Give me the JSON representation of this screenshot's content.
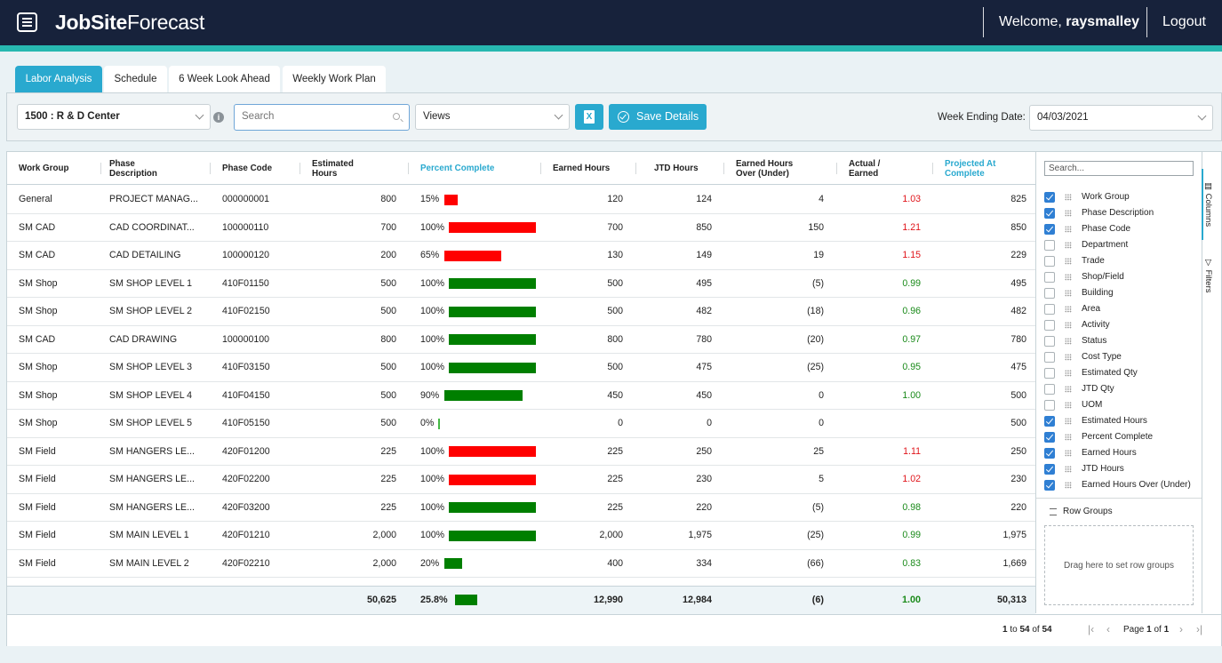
{
  "header": {
    "logo_bold": "JobSite",
    "logo_light": "Forecast",
    "welcome_prefix": "Welcome, ",
    "username": "raysmalley",
    "logout": "Logout"
  },
  "tabs": [
    {
      "label": "Labor Analysis",
      "active": true
    },
    {
      "label": "Schedule",
      "active": false
    },
    {
      "label": "6 Week Look Ahead",
      "active": false
    },
    {
      "label": "Weekly Work Plan",
      "active": false
    }
  ],
  "toolbar": {
    "project": "1500 : R & D Center",
    "search_placeholder": "Search",
    "views": "Views",
    "excel_icon": "X",
    "save_label": "Save Details",
    "week_ending_label": "Week Ending Date:",
    "week_ending_value": "04/03/2021"
  },
  "columns": {
    "work_group": "Work Group",
    "phase_description": [
      "Phase",
      "Description"
    ],
    "phase_code": "Phase Code",
    "estimated_hours": [
      "Estimated",
      "Hours"
    ],
    "percent_complete": "Percent Complete",
    "earned_hours": "Earned Hours",
    "jtd_hours": "JTD Hours",
    "earned_over_under": [
      "Earned Hours",
      "Over (Under)"
    ],
    "actual_earned": [
      "Actual /",
      "Earned"
    ],
    "projected": [
      "Projected At",
      "Complete"
    ]
  },
  "rows": [
    {
      "wg": "General",
      "desc": "PROJECT MANAG...",
      "code": "000000001",
      "est": "800",
      "pct_label": "15%",
      "pct": 15,
      "pct_status": "red",
      "earned": "120",
      "jtd": "124",
      "over": "4",
      "ratio": "1.03",
      "ratio_status": "red",
      "proj": "825"
    },
    {
      "wg": "SM CAD",
      "desc": "CAD COORDINAT...",
      "code": "100000110",
      "est": "700",
      "pct_label": "100%",
      "pct": 100,
      "pct_status": "red",
      "earned": "700",
      "jtd": "850",
      "over": "150",
      "ratio": "1.21",
      "ratio_status": "red",
      "proj": "850"
    },
    {
      "wg": "SM CAD",
      "desc": "CAD DETAILING",
      "code": "100000120",
      "est": "200",
      "pct_label": "65%",
      "pct": 65,
      "pct_status": "red",
      "earned": "130",
      "jtd": "149",
      "over": "19",
      "ratio": "1.15",
      "ratio_status": "red",
      "proj": "229"
    },
    {
      "wg": "SM Shop",
      "desc": "SM SHOP LEVEL 1",
      "code": "410F01150",
      "est": "500",
      "pct_label": "100%",
      "pct": 100,
      "pct_status": "green",
      "earned": "500",
      "jtd": "495",
      "over": "(5)",
      "ratio": "0.99",
      "ratio_status": "green",
      "proj": "495"
    },
    {
      "wg": "SM Shop",
      "desc": "SM SHOP LEVEL 2",
      "code": "410F02150",
      "est": "500",
      "pct_label": "100%",
      "pct": 100,
      "pct_status": "green",
      "earned": "500",
      "jtd": "482",
      "over": "(18)",
      "ratio": "0.96",
      "ratio_status": "green",
      "proj": "482"
    },
    {
      "wg": "SM CAD",
      "desc": "CAD DRAWING",
      "code": "100000100",
      "est": "800",
      "pct_label": "100%",
      "pct": 100,
      "pct_status": "green",
      "earned": "800",
      "jtd": "780",
      "over": "(20)",
      "ratio": "0.97",
      "ratio_status": "green",
      "proj": "780"
    },
    {
      "wg": "SM Shop",
      "desc": "SM SHOP LEVEL 3",
      "code": "410F03150",
      "est": "500",
      "pct_label": "100%",
      "pct": 100,
      "pct_status": "green",
      "earned": "500",
      "jtd": "475",
      "over": "(25)",
      "ratio": "0.95",
      "ratio_status": "green",
      "proj": "475"
    },
    {
      "wg": "SM Shop",
      "desc": "SM SHOP LEVEL 4",
      "code": "410F04150",
      "est": "500",
      "pct_label": "90%",
      "pct": 90,
      "pct_status": "green",
      "earned": "450",
      "jtd": "450",
      "over": "0",
      "ratio": "1.00",
      "ratio_status": "green",
      "proj": "500"
    },
    {
      "wg": "SM Shop",
      "desc": "SM SHOP LEVEL 5",
      "code": "410F05150",
      "est": "500",
      "pct_label": "0%",
      "pct": 0,
      "pct_status": "green",
      "earned": "0",
      "jtd": "0",
      "over": "0",
      "ratio": "",
      "ratio_status": "green",
      "proj": "500"
    },
    {
      "wg": "SM Field",
      "desc": "SM HANGERS LE...",
      "code": "420F01200",
      "est": "225",
      "pct_label": "100%",
      "pct": 100,
      "pct_status": "red",
      "earned": "225",
      "jtd": "250",
      "over": "25",
      "ratio": "1.11",
      "ratio_status": "red",
      "proj": "250"
    },
    {
      "wg": "SM Field",
      "desc": "SM HANGERS LE...",
      "code": "420F02200",
      "est": "225",
      "pct_label": "100%",
      "pct": 100,
      "pct_status": "red",
      "earned": "225",
      "jtd": "230",
      "over": "5",
      "ratio": "1.02",
      "ratio_status": "red",
      "proj": "230"
    },
    {
      "wg": "SM Field",
      "desc": "SM HANGERS LE...",
      "code": "420F03200",
      "est": "225",
      "pct_label": "100%",
      "pct": 100,
      "pct_status": "green",
      "earned": "225",
      "jtd": "220",
      "over": "(5)",
      "ratio": "0.98",
      "ratio_status": "green",
      "proj": "220"
    },
    {
      "wg": "SM Field",
      "desc": "SM MAIN LEVEL 1",
      "code": "420F01210",
      "est": "2,000",
      "pct_label": "100%",
      "pct": 100,
      "pct_status": "green",
      "earned": "2,000",
      "jtd": "1,975",
      "over": "(25)",
      "ratio": "0.99",
      "ratio_status": "green",
      "proj": "1,975"
    },
    {
      "wg": "SM Field",
      "desc": "SM MAIN LEVEL 2",
      "code": "420F02210",
      "est": "2,000",
      "pct_label": "20%",
      "pct": 20,
      "pct_status": "green",
      "earned": "400",
      "jtd": "334",
      "over": "(66)",
      "ratio": "0.83",
      "ratio_status": "green",
      "proj": "1,669"
    }
  ],
  "totals": {
    "est": "50,625",
    "pct_label": "25.8%",
    "pct": 25.8,
    "earned": "12,990",
    "jtd": "12,984",
    "over": "(6)",
    "ratio": "1.00",
    "proj": "50,313"
  },
  "column_panel": {
    "search_placeholder": "Search...",
    "items": [
      {
        "label": "Work Group",
        "checked": true
      },
      {
        "label": "Phase Description",
        "checked": true
      },
      {
        "label": "Phase Code",
        "checked": true
      },
      {
        "label": "Department",
        "checked": false
      },
      {
        "label": "Trade",
        "checked": false
      },
      {
        "label": "Shop/Field",
        "checked": false
      },
      {
        "label": "Building",
        "checked": false
      },
      {
        "label": "Area",
        "checked": false
      },
      {
        "label": "Activity",
        "checked": false
      },
      {
        "label": "Status",
        "checked": false
      },
      {
        "label": "Cost Type",
        "checked": false
      },
      {
        "label": "Estimated Qty",
        "checked": false
      },
      {
        "label": "JTD Qty",
        "checked": false
      },
      {
        "label": "UOM",
        "checked": false
      },
      {
        "label": "Estimated Hours",
        "checked": true
      },
      {
        "label": "Percent Complete",
        "checked": true
      },
      {
        "label": "Earned Hours",
        "checked": true
      },
      {
        "label": "JTD Hours",
        "checked": true
      },
      {
        "label": "Earned Hours Over (Under)",
        "checked": true
      }
    ],
    "row_groups": "Row Groups",
    "dropzone": "Drag here to set row groups",
    "side_columns": "Columns",
    "side_filters": "Filters"
  },
  "pager": {
    "from": "1",
    "to_word": "to",
    "to": "54",
    "of_word": "of",
    "total": "54",
    "page_word": "Page",
    "page": "1",
    "of2": "of",
    "pages": "1"
  },
  "colors": {
    "accent": "#29a9cf",
    "header_bg": "#17223b",
    "stripe": "#27b8b0",
    "over": "#ff0000",
    "under": "#007f00"
  }
}
